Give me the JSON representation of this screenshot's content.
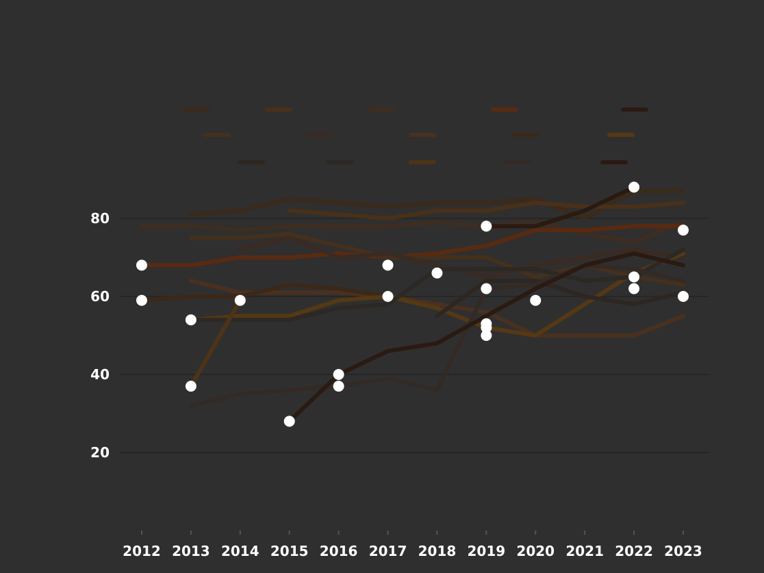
{
  "chart_data": {
    "type": "line",
    "title": "",
    "xlabel": "",
    "ylabel": "",
    "x": [
      "2012",
      "2013",
      "2014",
      "2015",
      "2016",
      "2017",
      "2018",
      "2019",
      "2020",
      "2021",
      "2022",
      "2023"
    ],
    "ylim": [
      0,
      100
    ],
    "yticks": [
      20,
      40,
      60,
      80
    ],
    "grid": true,
    "legend_position": "top-right",
    "series": [
      {
        "name": "",
        "color": "#3a2a1a",
        "values": [
          null,
          81,
          82,
          85,
          84,
          83,
          84,
          84,
          85,
          80,
          87,
          87
        ]
      },
      {
        "name": "",
        "color": "#4a3018",
        "values": [
          null,
          null,
          null,
          82,
          81,
          80,
          82,
          82,
          84,
          83,
          83,
          84
        ]
      },
      {
        "name": "",
        "color": "#3e2d20",
        "values": [
          78,
          78,
          77,
          78,
          78,
          78,
          79,
          78,
          79,
          76,
          74,
          79
        ]
      },
      {
        "name": "",
        "color": "#5a2a10",
        "values": [
          68,
          68,
          70,
          70,
          71,
          70,
          71,
          73,
          77,
          77,
          78,
          78
        ]
      },
      {
        "name": "",
        "color": "#2a1a10",
        "values": [
          null,
          null,
          null,
          null,
          null,
          null,
          null,
          78,
          78,
          82,
          88,
          null
        ]
      },
      {
        "name": "",
        "color": "#44301c",
        "values": [
          null,
          75,
          75,
          76,
          73,
          70,
          70,
          70,
          65,
          68,
          65,
          63
        ]
      },
      {
        "name": "",
        "color": "#3a2a22",
        "values": [
          null,
          null,
          72,
          75,
          70,
          71,
          68,
          65,
          68,
          70,
          72,
          70
        ]
      },
      {
        "name": "",
        "color": "#4a3020",
        "values": [
          null,
          64,
          61,
          61,
          61,
          60,
          58,
          56,
          50,
          50,
          50,
          55
        ]
      },
      {
        "name": "",
        "color": "#3c2818",
        "values": [
          59,
          60,
          60,
          63,
          62,
          60,
          null,
          null,
          null,
          null,
          null,
          null
        ]
      },
      {
        "name": "",
        "color": "#553814",
        "values": [
          null,
          54,
          55,
          55,
          59,
          60,
          57,
          52,
          50,
          58,
          66,
          71
        ]
      },
      {
        "name": "",
        "color": "#2e2620",
        "values": [
          null,
          null,
          null,
          null,
          null,
          null,
          55,
          64,
          64,
          60,
          58,
          61
        ]
      },
      {
        "name": "",
        "color": "#2c2824",
        "values": [
          null,
          54,
          54,
          54,
          57,
          58,
          67,
          67,
          67,
          64,
          65,
          72
        ]
      },
      {
        "name": "",
        "color": "#4d3416",
        "values": [
          null,
          37,
          59,
          null,
          null,
          null,
          null,
          null,
          null,
          null,
          null,
          null
        ]
      },
      {
        "name": "",
        "color": "#332a26",
        "values": [
          null,
          32,
          35,
          36,
          37,
          39,
          36,
          62,
          63,
          68,
          67,
          64
        ]
      },
      {
        "name": "",
        "color": "#2a1a12",
        "values": [
          null,
          null,
          null,
          28,
          40,
          46,
          48,
          55,
          62,
          68,
          71,
          68
        ]
      }
    ],
    "annotations": [
      {
        "x": "2012",
        "y": 68
      },
      {
        "x": "2012",
        "y": 59
      },
      {
        "x": "2013",
        "y": 54
      },
      {
        "x": "2013",
        "y": 37
      },
      {
        "x": "2014",
        "y": 59
      },
      {
        "x": "2015",
        "y": 28
      },
      {
        "x": "2016",
        "y": 40
      },
      {
        "x": "2016",
        "y": 37
      },
      {
        "x": "2017",
        "y": 60
      },
      {
        "x": "2017",
        "y": 68
      },
      {
        "x": "2018",
        "y": 66
      },
      {
        "x": "2019",
        "y": 52
      },
      {
        "x": "2019",
        "y": 50
      },
      {
        "x": "2019",
        "y": 78
      },
      {
        "x": "2019",
        "y": 53
      },
      {
        "x": "2019",
        "y": 62
      },
      {
        "x": "2020",
        "y": 59
      },
      {
        "x": "2022",
        "y": 88
      },
      {
        "x": "2022",
        "y": 65
      },
      {
        "x": "2022",
        "y": 62
      },
      {
        "x": "2023",
        "y": 77
      },
      {
        "x": "2023",
        "y": 60
      }
    ]
  }
}
